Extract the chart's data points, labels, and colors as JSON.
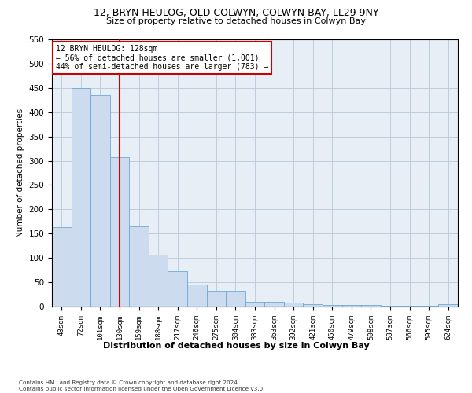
{
  "title": "12, BRYN HEULOG, OLD COLWYN, COLWYN BAY, LL29 9NY",
  "subtitle": "Size of property relative to detached houses in Colwyn Bay",
  "xlabel": "Distribution of detached houses by size in Colwyn Bay",
  "ylabel": "Number of detached properties",
  "bar_values": [
    163,
    450,
    435,
    307,
    165,
    107,
    73,
    45,
    32,
    32,
    10,
    10,
    8,
    5,
    4,
    3,
    3,
    2,
    1,
    1,
    5
  ],
  "bin_labels": [
    "43sqm",
    "72sqm",
    "101sqm",
    "130sqm",
    "159sqm",
    "188sqm",
    "217sqm",
    "246sqm",
    "275sqm",
    "304sqm",
    "333sqm",
    "363sqm",
    "392sqm",
    "421sqm",
    "450sqm",
    "479sqm",
    "508sqm",
    "537sqm",
    "566sqm",
    "595sqm",
    "624sqm"
  ],
  "bar_color": "#ccdcee",
  "bar_edge_color": "#6aaad4",
  "grid_color": "#b8c8d8",
  "background_color": "#e8eef6",
  "vline_x_index": 3,
  "vline_color": "#cc0000",
  "annotation_text": "12 BRYN HEULOG: 128sqm\n← 56% of detached houses are smaller (1,001)\n44% of semi-detached houses are larger (783) →",
  "annotation_box_color": "white",
  "annotation_box_edge": "#cc0000",
  "ylim": [
    0,
    550
  ],
  "yticks": [
    0,
    50,
    100,
    150,
    200,
    250,
    300,
    350,
    400,
    450,
    500,
    550
  ],
  "footnote": "Contains HM Land Registry data © Crown copyright and database right 2024.\nContains public sector information licensed under the Open Government Licence v3.0."
}
